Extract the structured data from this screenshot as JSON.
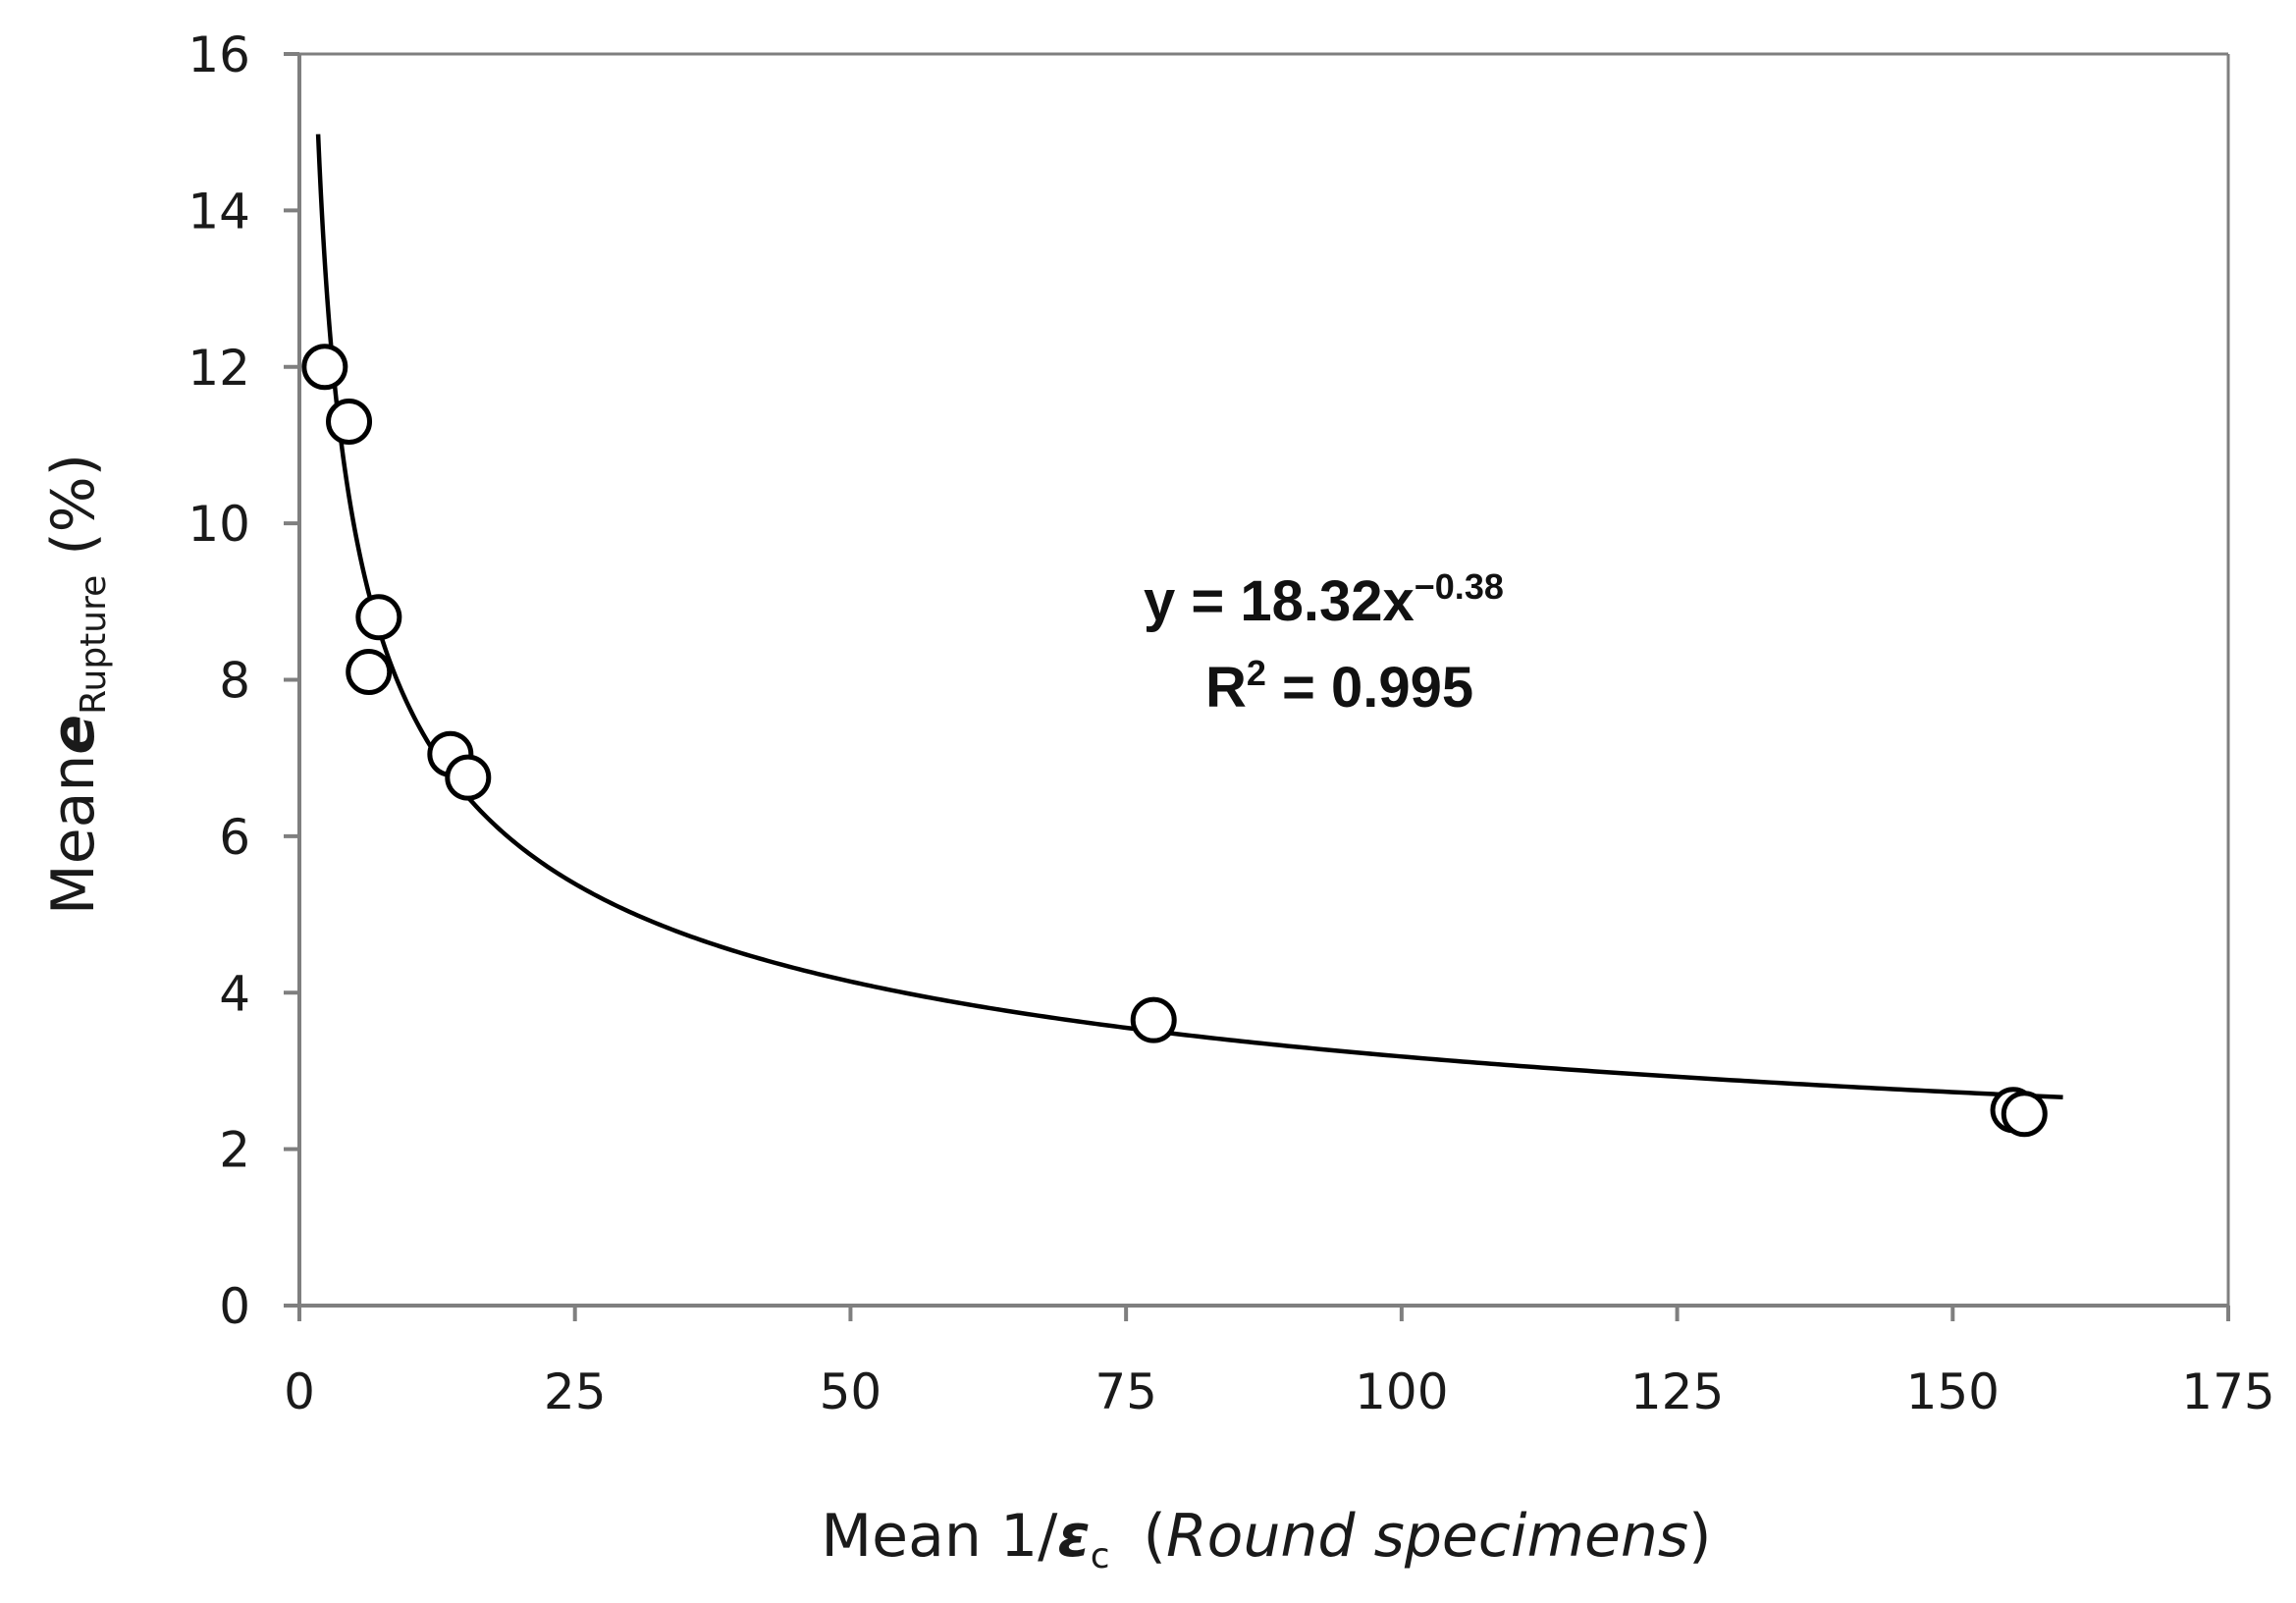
{
  "chart_data": {
    "type": "scatter",
    "title": "",
    "xlabel": {
      "prefix": "Mean 1/",
      "symbol": "ε",
      "subscript": "c",
      "qualifier_open": "(",
      "qualifier": "Round specimens",
      "qualifier_close": ")"
    },
    "ylabel": {
      "prefix": "Mean",
      "symbol": "e",
      "subscript": "Rupture",
      "unit": "(%)"
    },
    "xlim": [
      0,
      175
    ],
    "ylim": [
      0,
      16
    ],
    "xticks": [
      0,
      25,
      50,
      75,
      100,
      125,
      150,
      175
    ],
    "yticks": [
      0,
      2,
      4,
      6,
      8,
      10,
      12,
      14,
      16
    ],
    "grid": false,
    "series": [
      {
        "name": "Round specimens",
        "marker": "open-circle",
        "points": [
          {
            "x": 2.3,
            "y": 12.0
          },
          {
            "x": 4.5,
            "y": 11.3
          },
          {
            "x": 7.2,
            "y": 8.8
          },
          {
            "x": 6.3,
            "y": 8.1
          },
          {
            "x": 13.7,
            "y": 7.05
          },
          {
            "x": 15.3,
            "y": 6.75
          },
          {
            "x": 77.5,
            "y": 3.65
          },
          {
            "x": 155.5,
            "y": 2.5
          },
          {
            "x": 156.5,
            "y": 2.45
          }
        ]
      }
    ],
    "fit": {
      "type": "power",
      "coefficient": 18.32,
      "exponent": -0.38,
      "x_range": [
        1.7,
        160
      ],
      "equation_prefix": "y = 18.32x",
      "equation_exponent": "−0.38",
      "r2_prefix": "R",
      "r2_exponent": "2",
      "r2_value": " = 0.995"
    },
    "colors": {
      "axis": "#7f7f7f",
      "line": "#000000",
      "marker_stroke": "#000000",
      "marker_fill": "#ffffff",
      "text": "#1a1a1a"
    }
  }
}
